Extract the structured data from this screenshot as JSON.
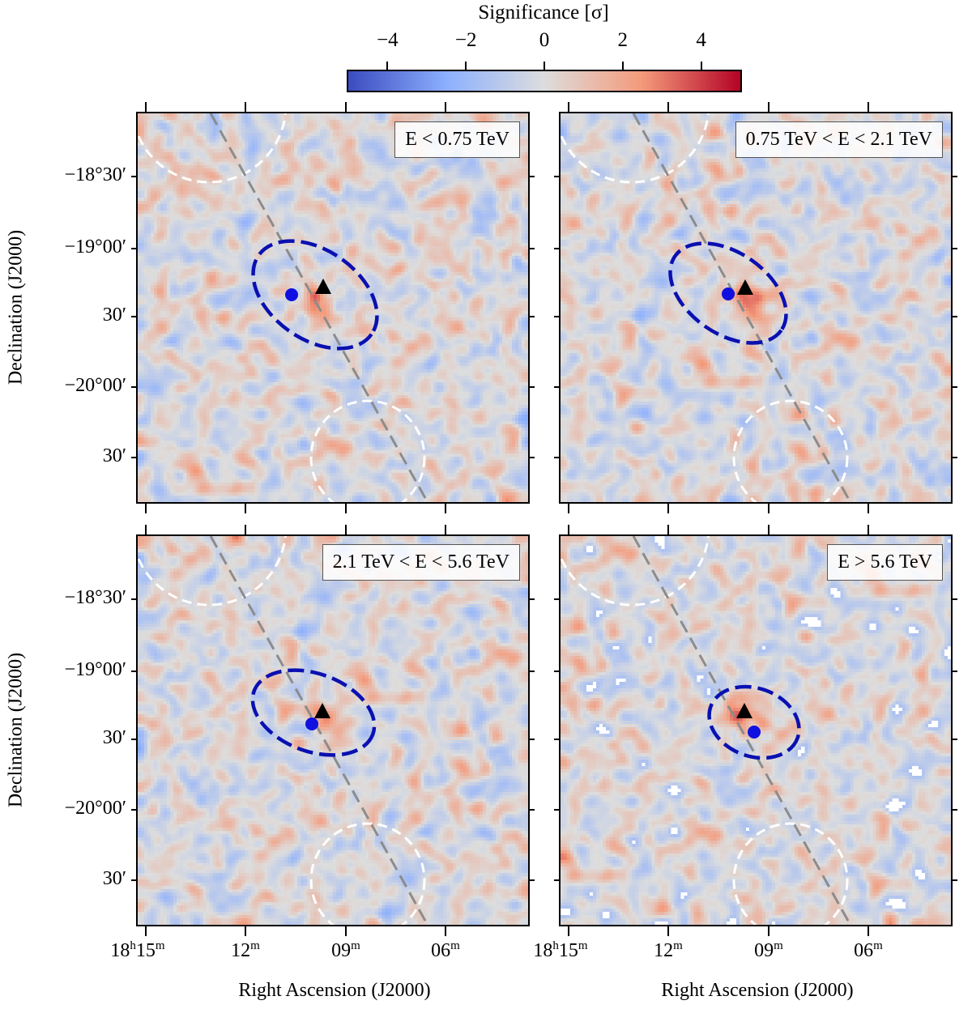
{
  "chart_data": {
    "type": "heatmap",
    "colorbar": {
      "label": "Significance [σ]",
      "ticks": [
        "−4",
        "−2",
        "0",
        "2",
        "4"
      ],
      "tick_values": [
        -4,
        -2,
        0,
        2,
        4
      ],
      "range": [
        -5,
        5
      ],
      "colormap": "coolwarm",
      "placement": "top"
    },
    "xlabel": "Right Ascension (J2000)",
    "ylabel": "Declination (J2000)",
    "xticks": [
      {
        "main": "18",
        "sup1": "h",
        "rest": "15",
        "sup2": "m"
      },
      {
        "main": "12",
        "sup2": "m"
      },
      {
        "main": "09",
        "sup2": "m"
      },
      {
        "main": "06",
        "sup2": "m"
      }
    ],
    "yticks": [
      "−18°30′",
      "−19°00′",
      "30′",
      "−20°00′",
      "30′"
    ],
    "panels": [
      {
        "label": "E < 0.75 TeV"
      },
      {
        "label": "0.75 TeV < E < 2.1 TeV"
      },
      {
        "label": "2.1 TeV < E < 5.6 TeV"
      },
      {
        "label": "E > 5.6 TeV"
      }
    ],
    "markers": {
      "source_position": {
        "shape": "circle",
        "color": "#1010e0"
      },
      "alt_position": {
        "shape": "triangle",
        "color": "#000000"
      },
      "extent_ellipse": {
        "style": "dashed",
        "color": "#0a10b0"
      },
      "reflected_regions": {
        "style": "dashed",
        "color": "#ffffff"
      },
      "galactic_plane": {
        "style": "dashed",
        "color": "#8c8c8c"
      }
    }
  }
}
